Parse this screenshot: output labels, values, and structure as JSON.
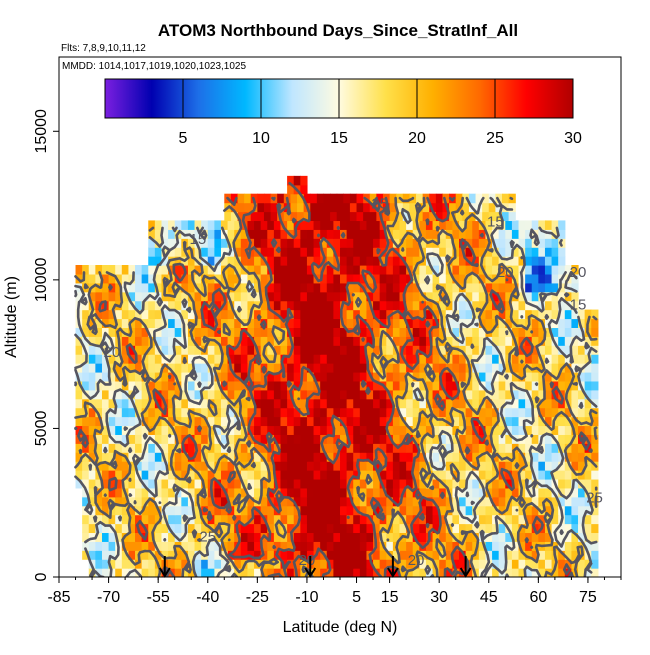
{
  "chart_data": {
    "type": "heatmap",
    "title": "ATOM3 Northbound Days_Since_StratInf_All",
    "subtitle_flights": "Flts: 7,8,9,10,11,12",
    "subtitle_dates": "MMDD: 1014,1017,1019,1020,1023,1025",
    "xlabel": "Latitude (deg N)",
    "ylabel": "Altitude (m)",
    "xlim": [
      -85,
      85
    ],
    "ylim": [
      0,
      17500
    ],
    "x_ticks": [
      -85,
      -70,
      -55,
      -40,
      -25,
      -10,
      5,
      15,
      30,
      45,
      60,
      75
    ],
    "x_tick_labels": [
      "-85",
      "-70",
      "-55",
      "-40",
      "-25",
      "-10",
      "5",
      "15",
      "30",
      "45",
      "60",
      "75"
    ],
    "y_ticks": [
      0,
      5000,
      10000,
      15000
    ],
    "y_tick_labels": [
      "0",
      "5000",
      "10000",
      "15000"
    ],
    "colorbar": {
      "min": 0,
      "max": 30,
      "ticks": [
        5,
        10,
        15,
        20,
        25,
        30
      ],
      "tick_labels": [
        "5",
        "10",
        "15",
        "20",
        "25",
        "30"
      ],
      "colors": [
        "#7b1fe0",
        "#0000b0",
        "#1d6fe8",
        "#00b8ff",
        "#bfe6ff",
        "#fffbe0",
        "#ffe04a",
        "#ffb000",
        "#ff6a00",
        "#ff0000",
        "#b00000"
      ]
    },
    "contour_levels": [
      15,
      20,
      25
    ],
    "contour_labels": [
      {
        "text": "15",
        "lat": -43,
        "alt": 11200
      },
      {
        "text": "15",
        "lat": 47,
        "alt": 11800
      },
      {
        "text": "15",
        "lat": 72,
        "alt": 9000
      },
      {
        "text": "20",
        "lat": -69,
        "alt": 7400
      },
      {
        "text": "20",
        "lat": 50,
        "alt": 10100
      },
      {
        "text": "20",
        "lat": 72,
        "alt": 10100
      },
      {
        "text": "20",
        "lat": -10,
        "alt": 400
      },
      {
        "text": "20",
        "lat": 23,
        "alt": 400
      },
      {
        "text": "25",
        "lat": 12,
        "alt": 12400
      },
      {
        "text": "25",
        "lat": -40,
        "alt": 1200
      },
      {
        "text": "25",
        "lat": 77,
        "alt": 2500
      }
    ],
    "profile_markers_lat": [
      -53,
      -9,
      16,
      38
    ],
    "series": [
      {
        "name": "days_since_stratospheric_influence",
        "rows": [
          {
            "alt_range": [
              0,
              500
            ],
            "lat_range": [
              -76,
              77
            ],
            "typical_value": 22
          },
          {
            "alt_range": [
              500,
              3000
            ],
            "lat_range": [
              -78,
              78
            ],
            "typical_value": 24
          },
          {
            "alt_range": [
              3000,
              6000
            ],
            "lat_range": [
              -80,
              78
            ],
            "typical_value": 23
          },
          {
            "alt_range": [
              6000,
              9000
            ],
            "lat_range": [
              -80,
              78
            ],
            "typical_value": 22
          },
          {
            "alt_range": [
              9000,
              10500
            ],
            "lat_range": [
              -80,
              72
            ],
            "typical_value": 21
          },
          {
            "alt_range": [
              10500,
              12000
            ],
            "lat_range": [
              -58,
              68
            ],
            "typical_value": 21
          },
          {
            "alt_range": [
              12000,
              12800
            ],
            "lat_range": [
              -35,
              52
            ],
            "typical_value": 22
          },
          {
            "alt_range": [
              12800,
              13500
            ],
            "lat_range": [
              -16,
              -11
            ],
            "typical_value": 29
          }
        ]
      }
    ]
  }
}
